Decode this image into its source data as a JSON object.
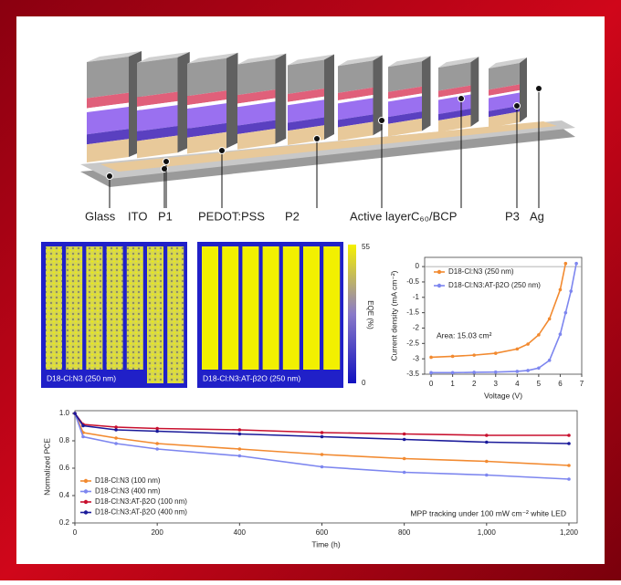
{
  "schematic": {
    "labels": [
      "Glass",
      "ITO",
      "P1",
      "PEDOT:PSS",
      "P2",
      "Active layer",
      "C₆₀/BCP",
      "P3",
      "Ag"
    ]
  },
  "eqe_maps": {
    "panels": [
      {
        "label": "D18-Cl:N3 (250 nm)"
      },
      {
        "label": "D18-Cl:N3:AT-β2O (250 nm)"
      }
    ],
    "colorbar": {
      "title": "EQE (%)",
      "ticks": [
        0,
        55
      ]
    }
  },
  "chart_data": [
    {
      "type": "line",
      "x_label": "Voltage (V)",
      "y_label": "Current density (mA cm⁻²)",
      "annotation": "Area: 15.03 cm²",
      "x": [
        0,
        1,
        2,
        3,
        4,
        4.5,
        5,
        5.5,
        6,
        6.25,
        6.5,
        6.75
      ],
      "xlim": [
        -0.3,
        7
      ],
      "xticks": [
        0,
        1,
        2,
        3,
        4,
        5,
        6,
        7
      ],
      "ylim": [
        -3.5,
        0.3
      ],
      "yticks": [
        0,
        -0.5,
        -1,
        -1.5,
        -2,
        -2.5,
        -3,
        -3.5
      ],
      "series": [
        {
          "name": "D18-Cl:N3 (250 nm)",
          "color": "#f28a30",
          "values": [
            -2.95,
            -2.92,
            -2.88,
            -2.82,
            -2.68,
            -2.52,
            -2.22,
            -1.7,
            -0.75,
            0.1,
            null,
            null
          ]
        },
        {
          "name": "D18-Cl:N3:AT-β2O (250 nm)",
          "color": "#7d86ef",
          "values": [
            -3.45,
            -3.45,
            -3.44,
            -3.43,
            -3.41,
            -3.38,
            -3.3,
            -3.05,
            -2.2,
            -1.5,
            -0.8,
            0.1
          ]
        }
      ]
    },
    {
      "type": "line",
      "x_label": "Time (h)",
      "y_label": "Normalized PCE",
      "annotation": "MPP tracking under 100 mW cm⁻² white LED",
      "x": [
        0,
        20,
        100,
        200,
        400,
        600,
        800,
        1000,
        1200
      ],
      "xlim": [
        0,
        1220
      ],
      "xticks": [
        0,
        200,
        400,
        600,
        800,
        {
          "value": 1000,
          "label": "1,000"
        },
        {
          "value": 1200,
          "label": "1,200"
        }
      ],
      "ylim": [
        0.2,
        1.02
      ],
      "yticks": [
        0.2,
        0.4,
        0.6,
        0.8,
        {
          "value": 1,
          "label": "1.0"
        }
      ],
      "series": [
        {
          "name": "D18-Cl:N3 (100 nm)",
          "color": "#f28a30",
          "values": [
            1.0,
            0.86,
            0.82,
            0.78,
            0.74,
            0.7,
            0.67,
            0.65,
            0.62
          ]
        },
        {
          "name": "D18-Cl:N3 (400 nm)",
          "color": "#7d86ef",
          "values": [
            1.0,
            0.83,
            0.78,
            0.74,
            0.69,
            0.61,
            0.57,
            0.55,
            0.52
          ]
        },
        {
          "name": "D18-Cl:N3:AT-β2O (100 nm)",
          "color": "#c8102e",
          "values": [
            1.0,
            0.92,
            0.9,
            0.89,
            0.88,
            0.86,
            0.85,
            0.84,
            0.84
          ]
        },
        {
          "name": "D18-Cl:N3:AT-β2O (400 nm)",
          "color": "#1a1a9a",
          "values": [
            1.0,
            0.91,
            0.88,
            0.87,
            0.85,
            0.83,
            0.81,
            0.79,
            0.78
          ]
        }
      ]
    }
  ]
}
